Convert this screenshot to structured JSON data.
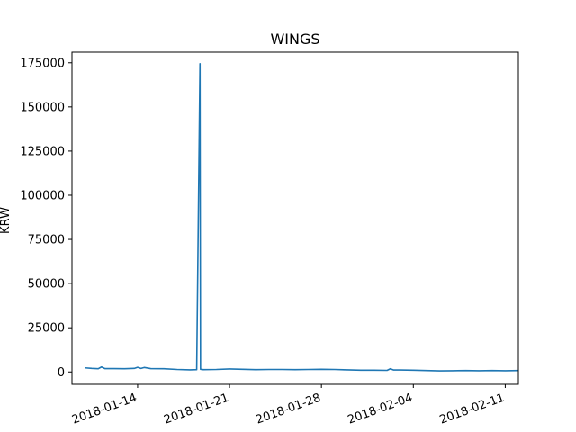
{
  "chart_data": {
    "type": "line",
    "title": "WINGS",
    "xlabel": "",
    "ylabel": "KRW",
    "grid": false,
    "color": "#1f77b4",
    "xlim": [
      "2018-01-09",
      "2018-02-12"
    ],
    "ylim": [
      -7000,
      181000
    ],
    "x_ticks": [
      "2018-01-14",
      "2018-01-21",
      "2018-01-28",
      "2018-02-04",
      "2018-02-11"
    ],
    "y_ticks": [
      0,
      25000,
      50000,
      75000,
      100000,
      125000,
      150000,
      175000
    ],
    "y_tick_labels": [
      "0",
      "25000",
      "50000",
      "75000",
      "100000",
      "125000",
      "150000",
      "175000"
    ],
    "series": [
      {
        "points": [
          [
            "2018-01-10",
            2300
          ],
          [
            "2018-01-10 12:00",
            2000
          ],
          [
            "2018-01-11",
            1800
          ],
          [
            "2018-01-11 06:00",
            2800
          ],
          [
            "2018-01-11 12:00",
            1900
          ],
          [
            "2018-01-12",
            1900
          ],
          [
            "2018-01-13",
            1800
          ],
          [
            "2018-01-13 18:00",
            2000
          ],
          [
            "2018-01-14",
            2600
          ],
          [
            "2018-01-14 06:00",
            2000
          ],
          [
            "2018-01-14 12:00",
            2500
          ],
          [
            "2018-01-15",
            1900
          ],
          [
            "2018-01-16",
            1800
          ],
          [
            "2018-01-17",
            1400
          ],
          [
            "2018-01-18",
            1200
          ],
          [
            "2018-01-18 12:00",
            1300
          ],
          [
            "2018-01-18 18:00",
            174500
          ],
          [
            "2018-01-18 19:00",
            1500
          ],
          [
            "2018-01-19",
            1300
          ],
          [
            "2018-01-20",
            1400
          ],
          [
            "2018-01-21",
            1700
          ],
          [
            "2018-01-22",
            1500
          ],
          [
            "2018-01-23",
            1300
          ],
          [
            "2018-01-24",
            1400
          ],
          [
            "2018-01-25",
            1400
          ],
          [
            "2018-01-26",
            1300
          ],
          [
            "2018-01-27",
            1400
          ],
          [
            "2018-01-28",
            1500
          ],
          [
            "2018-01-29",
            1400
          ],
          [
            "2018-01-30",
            1200
          ],
          [
            "2018-01-31",
            1000
          ],
          [
            "2018-02-01",
            1000
          ],
          [
            "2018-02-02",
            900
          ],
          [
            "2018-02-02 06:00",
            1800
          ],
          [
            "2018-02-02 12:00",
            1100
          ],
          [
            "2018-02-03",
            1100
          ],
          [
            "2018-02-04",
            1000
          ],
          [
            "2018-02-05",
            800
          ],
          [
            "2018-02-06",
            600
          ],
          [
            "2018-02-07",
            700
          ],
          [
            "2018-02-08",
            800
          ],
          [
            "2018-02-09",
            700
          ],
          [
            "2018-02-10",
            800
          ],
          [
            "2018-02-11",
            700
          ],
          [
            "2018-02-12",
            800
          ]
        ]
      }
    ]
  }
}
